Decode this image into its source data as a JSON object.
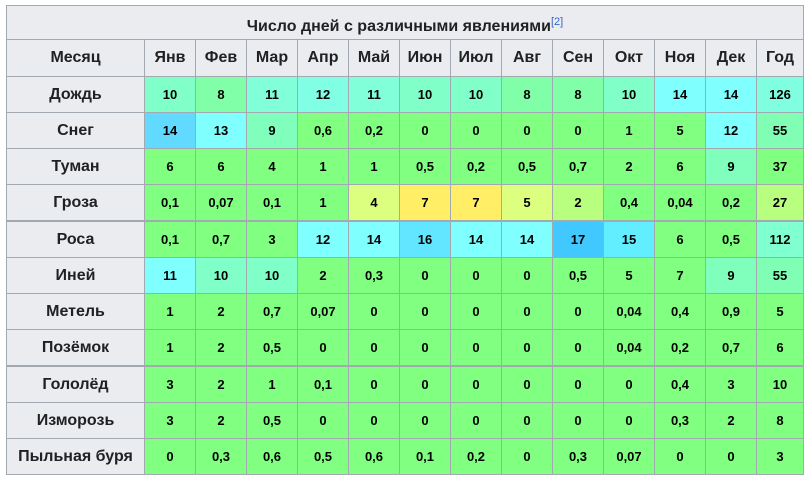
{
  "table": {
    "title": "Число дней с различными явлениями",
    "ref": "[2]",
    "header_label": "Месяц",
    "months": [
      "Янв",
      "Фев",
      "Мар",
      "Апр",
      "Май",
      "Июн",
      "Июл",
      "Авг",
      "Сен",
      "Окт",
      "Ноя",
      "Дек",
      "Год"
    ],
    "rows": [
      {
        "label": "Дождь",
        "values": [
          "10",
          "8",
          "11",
          "12",
          "11",
          "10",
          "10",
          "8",
          "8",
          "10",
          "14",
          "14",
          "126"
        ],
        "colors": [
          "#80ffc8",
          "#80ffa8",
          "#80ffd8",
          "#80ffe4",
          "#80ffd8",
          "#80ffc8",
          "#80ffc8",
          "#80ffa8",
          "#80ffa8",
          "#80ffc8",
          "#80ffff",
          "#80ffff",
          "#80ffe0"
        ]
      },
      {
        "label": "Снег",
        "values": [
          "14",
          "13",
          "9",
          "0,6",
          "0,2",
          "0",
          "0",
          "0",
          "0",
          "1",
          "5",
          "12",
          "55"
        ],
        "colors": [
          "#62daff",
          "#80ffff",
          "#80ffbc",
          "#80ff80",
          "#80ff80",
          "#80ff80",
          "#80ff80",
          "#80ff80",
          "#80ff80",
          "#80ff80",
          "#80ff80",
          "#80ffff",
          "#80ffb4"
        ]
      },
      {
        "label": "Туман",
        "values": [
          "6",
          "6",
          "4",
          "1",
          "1",
          "0,5",
          "0,2",
          "0,5",
          "0,7",
          "2",
          "6",
          "9",
          "37"
        ],
        "colors": [
          "#80ff80",
          "#80ff80",
          "#80ff80",
          "#80ff80",
          "#80ff80",
          "#80ff80",
          "#80ff80",
          "#80ff80",
          "#80ff80",
          "#80ff80",
          "#80ff80",
          "#80ffbc",
          "#80ff80"
        ]
      },
      {
        "label": "Гроза",
        "values": [
          "0,1",
          "0,07",
          "0,1",
          "1",
          "4",
          "7",
          "7",
          "5",
          "2",
          "0,4",
          "0,04",
          "0,2",
          "27"
        ],
        "colors": [
          "#80ff80",
          "#80ff80",
          "#80ff80",
          "#80ff80",
          "#ddff80",
          "#ffee66",
          "#ffee66",
          "#ddff80",
          "#b8ff80",
          "#80ff80",
          "#80ff80",
          "#80ff80",
          "#b8ff80"
        ]
      },
      {
        "label": "Роса",
        "values": [
          "0,1",
          "0,7",
          "3",
          "12",
          "14",
          "16",
          "14",
          "14",
          "17",
          "15",
          "6",
          "0,5",
          "112"
        ],
        "colors": [
          "#80ff80",
          "#80ff80",
          "#80ff80",
          "#80ffff",
          "#80ffff",
          "#62e6ff",
          "#80ffff",
          "#80ffff",
          "#40c8ff",
          "#62eeff",
          "#80ff80",
          "#80ff80",
          "#80ffd0"
        ]
      },
      {
        "label": "Иней",
        "values": [
          "11",
          "10",
          "10",
          "2",
          "0,3",
          "0",
          "0",
          "0",
          "0,5",
          "5",
          "7",
          "9",
          "55"
        ],
        "colors": [
          "#80ffff",
          "#80ffc8",
          "#80ffc8",
          "#80ff80",
          "#80ff80",
          "#80ff80",
          "#80ff80",
          "#80ff80",
          "#80ff80",
          "#80ff80",
          "#80ff80",
          "#80ffbc",
          "#80ffb4"
        ]
      },
      {
        "label": "Метель",
        "values": [
          "1",
          "2",
          "0,7",
          "0,07",
          "0",
          "0",
          "0",
          "0",
          "0",
          "0,04",
          "0,4",
          "0,9",
          "5"
        ],
        "colors": [
          "#80ff80",
          "#80ff80",
          "#80ff80",
          "#80ff80",
          "#80ff80",
          "#80ff80",
          "#80ff80",
          "#80ff80",
          "#80ff80",
          "#80ff80",
          "#80ff80",
          "#80ff80",
          "#80ff80"
        ]
      },
      {
        "label": "Позёмок",
        "values": [
          "1",
          "2",
          "0,5",
          "0",
          "0",
          "0",
          "0",
          "0",
          "0",
          "0,04",
          "0,2",
          "0,7",
          "6"
        ],
        "colors": [
          "#80ff80",
          "#80ff80",
          "#80ff80",
          "#80ff80",
          "#80ff80",
          "#80ff80",
          "#80ff80",
          "#80ff80",
          "#80ff80",
          "#80ff80",
          "#80ff80",
          "#80ff80",
          "#80ff80"
        ]
      },
      {
        "label": "Гололёд",
        "values": [
          "3",
          "2",
          "1",
          "0,1",
          "0",
          "0",
          "0",
          "0",
          "0",
          "0",
          "0,4",
          "3",
          "10"
        ],
        "colors": [
          "#80ff80",
          "#80ff80",
          "#80ff80",
          "#80ff80",
          "#80ff80",
          "#80ff80",
          "#80ff80",
          "#80ff80",
          "#80ff80",
          "#80ff80",
          "#80ff80",
          "#80ff80",
          "#80ff80"
        ]
      },
      {
        "label": "Изморозь",
        "values": [
          "3",
          "2",
          "0,5",
          "0",
          "0",
          "0",
          "0",
          "0",
          "0",
          "0",
          "0,3",
          "2",
          "8"
        ],
        "colors": [
          "#80ff80",
          "#80ff80",
          "#80ff80",
          "#80ff80",
          "#80ff80",
          "#80ff80",
          "#80ff80",
          "#80ff80",
          "#80ff80",
          "#80ff80",
          "#80ff80",
          "#80ff80",
          "#80ff80"
        ]
      },
      {
        "label": "Пыльная буря",
        "values": [
          "0",
          "0,3",
          "0,6",
          "0,5",
          "0,6",
          "0,1",
          "0,2",
          "0",
          "0,3",
          "0,07",
          "0",
          "0",
          "3"
        ],
        "colors": [
          "#80ff80",
          "#80ff80",
          "#80ff80",
          "#80ff80",
          "#80ff80",
          "#80ff80",
          "#80ff80",
          "#80ff80",
          "#80ff80",
          "#80ff80",
          "#80ff80",
          "#80ff80",
          "#80ff80"
        ]
      }
    ]
  }
}
